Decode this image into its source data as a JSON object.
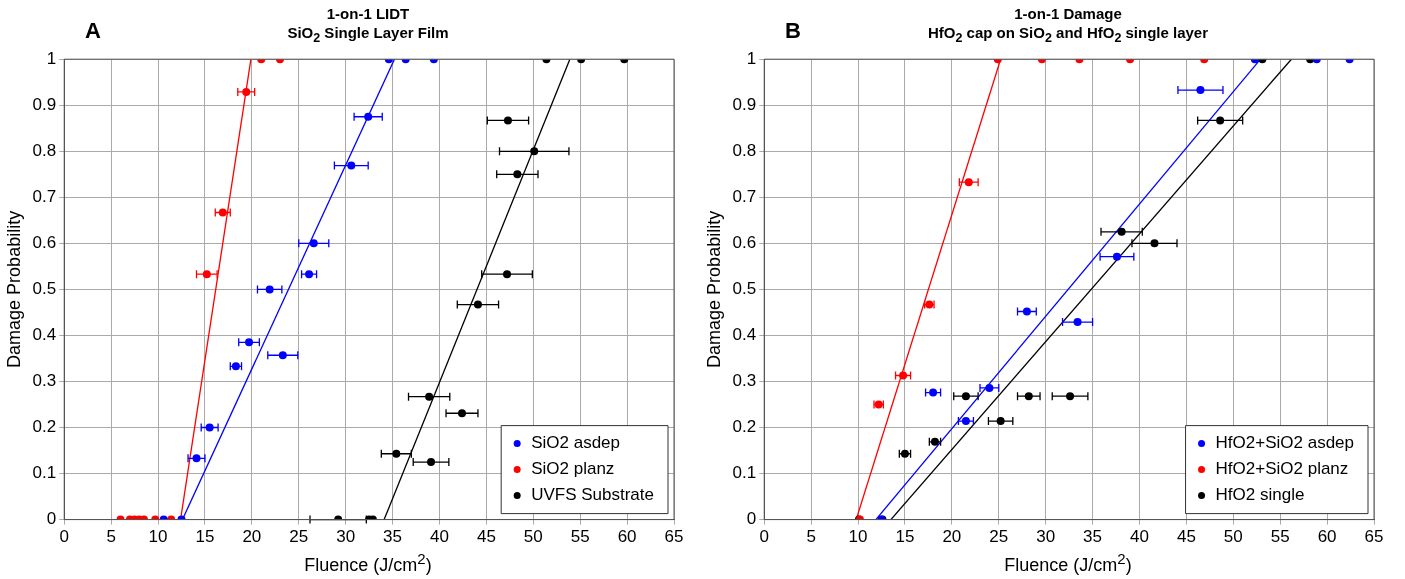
{
  "chart_data": [
    {
      "type": "scatter",
      "title": "1-on-1 LIDT",
      "subtitle": "SiO$_{2}$ Single Layer Film",
      "xlabel": "Fluence (J/cm$^{2}$)",
      "ylabel": "Damage Probability",
      "annotations": [
        "A"
      ],
      "xlim": [
        0,
        65
      ],
      "ylim": [
        0,
        1
      ],
      "xticks": [
        0,
        5,
        10,
        15,
        20,
        25,
        30,
        35,
        40,
        45,
        50,
        55,
        60,
        65
      ],
      "yticks": [
        0,
        0.1,
        0.2,
        0.3,
        0.4,
        0.5,
        0.6,
        0.7,
        0.8,
        0.9,
        1
      ],
      "grid": true,
      "legend": "bottom right",
      "marker": "circle",
      "series": [
        {
          "name": "SiO2 asdep",
          "color": "#0000ff",
          "x": [
            14.1,
            15.5,
            18.3,
            19.7,
            23.3,
            21.9,
            26.1,
            26.6,
            30.6,
            32.4,
            10.6,
            12.5,
            34.6,
            36.4,
            39.4
          ],
          "values": [
            0.133,
            0.2,
            0.333,
            0.385,
            0.357,
            0.5,
            0.533,
            0.6,
            0.769,
            0.875,
            0,
            0,
            1,
            1,
            1
          ],
          "xerrors": [
            0.9,
            0.9,
            0.6,
            1.1,
            1.6,
            1.3,
            0.8,
            1.6,
            1.8,
            1.5,
            null,
            null,
            null,
            null,
            null
          ]
        },
        {
          "name": "SiO2 planz",
          "color": "#ff0000",
          "x": [
            15.2,
            16.9,
            19.4,
            6,
            7,
            7.5,
            8,
            8.5,
            9.7,
            11.4,
            21,
            23
          ],
          "values": [
            0.533,
            0.667,
            0.929,
            0,
            0,
            0,
            0,
            0,
            0,
            0,
            1,
            1
          ],
          "xerrors": [
            1.1,
            0.8,
            0.9,
            null,
            null,
            null,
            null,
            null,
            null,
            null,
            null,
            null
          ]
        },
        {
          "name": "UVFS Substrate",
          "color": "#000000",
          "x": [
            35.4,
            39.1,
            38.9,
            42.4,
            44.1,
            47.2,
            48.3,
            50.1,
            47.3,
            29.2,
            32.5,
            32.9,
            51.4,
            55.1,
            59.7
          ],
          "values": [
            0.143,
            0.125,
            0.267,
            0.231,
            0.467,
            0.533,
            0.75,
            0.8,
            0.867,
            0,
            0,
            0,
            1,
            1,
            1
          ],
          "xerrors": [
            1.6,
            1.9,
            2.2,
            1.7,
            2.2,
            2.7,
            2.2,
            3.7,
            2.2,
            3,
            null,
            null,
            null,
            null,
            null
          ]
        },
        {
          "type": "line",
          "marker": "none",
          "color": "#ff0000",
          "x": [
            12.4,
            19.9
          ],
          "values": [
            0,
            1
          ]
        },
        {
          "type": "line",
          "marker": "none",
          "color": "#0000ff",
          "x": [
            12.6,
            35.2
          ],
          "values": [
            0,
            1
          ]
        },
        {
          "type": "line",
          "marker": "none",
          "color": "#000000",
          "x": [
            34.1,
            53.9
          ],
          "values": [
            0,
            1
          ]
        }
      ]
    },
    {
      "type": "scatter",
      "title": "1-on-1 Damage",
      "subtitle": "HfO$_{2}$ cap on SiO$_{2}$ and HfO$_{2}$ single layer",
      "xlabel": "Fluence (J/cm$^{2}$)",
      "ylabel": "Damage Probability",
      "annotations": [
        "B"
      ],
      "xlim": [
        0,
        65
      ],
      "ylim": [
        0,
        1
      ],
      "xticks": [
        0,
        5,
        10,
        15,
        20,
        25,
        30,
        35,
        40,
        45,
        50,
        55,
        60,
        65
      ],
      "yticks": [
        0,
        0.1,
        0.2,
        0.3,
        0.4,
        0.5,
        0.6,
        0.7,
        0.8,
        0.9,
        1
      ],
      "grid": true,
      "legend": "bottom right",
      "marker": "circle",
      "series": [
        {
          "name": "HfO2+SiO2 asdep",
          "color": "#0000ff",
          "x": [
            18,
            21.5,
            24,
            28,
            33.4,
            37.6,
            46.5,
            12.5,
            52.3,
            58.9,
            62.4
          ],
          "values": [
            0.276,
            0.214,
            0.286,
            0.452,
            0.429,
            0.571,
            0.933,
            0,
            1,
            1,
            1
          ],
          "xerrors": [
            0.8,
            0.8,
            1,
            1,
            1.6,
            1.8,
            2.4,
            null,
            null,
            null,
            null
          ]
        },
        {
          "name": "HfO2+SiO2 planz",
          "color": "#ff0000",
          "x": [
            12.2,
            14.8,
            17.6,
            21.8,
            10.2,
            24.9,
            29.6,
            33.6,
            39,
            46.9
          ],
          "values": [
            0.25,
            0.313,
            0.467,
            0.733,
            0,
            1,
            1,
            1,
            1,
            1
          ],
          "xerrors": [
            0.5,
            0.8,
            0.5,
            1,
            null,
            null,
            null,
            null,
            null,
            null
          ]
        },
        {
          "name": "HfO2 single",
          "color": "#000000",
          "x": [
            15,
            18.2,
            21.5,
            25.2,
            28.2,
            32.6,
            38.1,
            41.6,
            48.6,
            10.1,
            12.6,
            53.1,
            58.2
          ],
          "values": [
            0.143,
            0.169,
            0.268,
            0.214,
            0.268,
            0.268,
            0.625,
            0.6,
            0.867,
            0,
            0,
            1,
            1
          ],
          "xerrors": [
            0.6,
            0.6,
            1.3,
            1.3,
            1.2,
            1.9,
            2.2,
            2.4,
            2.4,
            null,
            null,
            null,
            null
          ]
        },
        {
          "type": "line",
          "marker": "none",
          "color": "#ff0000",
          "x": [
            9.8,
            25.2
          ],
          "values": [
            0,
            1
          ]
        },
        {
          "type": "line",
          "marker": "none",
          "color": "#0000ff",
          "x": [
            11.9,
            52.9
          ],
          "values": [
            0,
            1
          ]
        },
        {
          "type": "line",
          "marker": "none",
          "color": "#000000",
          "x": [
            13.5,
            56.2
          ],
          "values": [
            0,
            1
          ]
        }
      ]
    }
  ]
}
